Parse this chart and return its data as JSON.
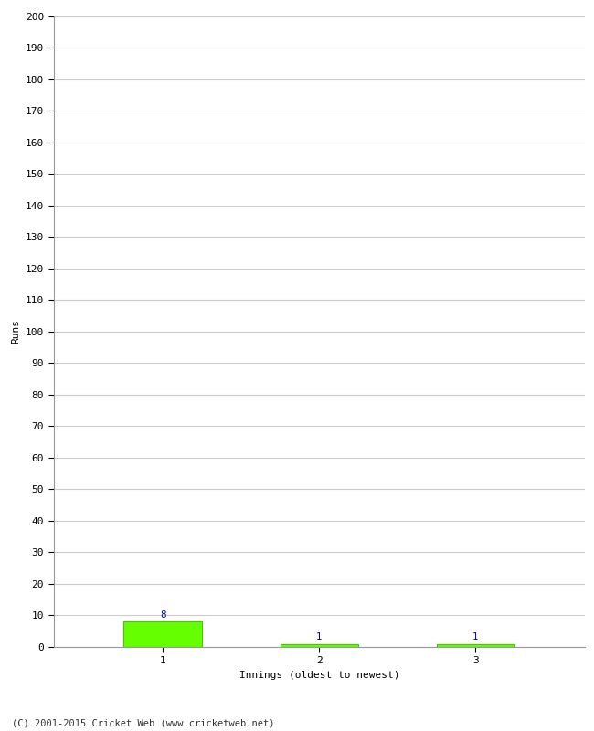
{
  "xlabel": "Innings (oldest to newest)",
  "ylabel": "Runs",
  "categories": [
    "1",
    "2",
    "3"
  ],
  "values": [
    8,
    1,
    1
  ],
  "bar_color": "#66ff00",
  "bar_edge_color": "#44cc00",
  "value_label_color": "#0000cc",
  "ylim": [
    0,
    200
  ],
  "yticks": [
    0,
    10,
    20,
    30,
    40,
    50,
    60,
    70,
    80,
    90,
    100,
    110,
    120,
    130,
    140,
    150,
    160,
    170,
    180,
    190,
    200
  ],
  "grid_color": "#cccccc",
  "background_color": "#ffffff",
  "footer_text": "(C) 2001-2015 Cricket Web (www.cricketweb.net)",
  "value_label_fontsize": 7.5,
  "axis_label_fontsize": 8,
  "tick_label_fontsize": 8,
  "footer_fontsize": 7.5,
  "bar_width": 0.5
}
